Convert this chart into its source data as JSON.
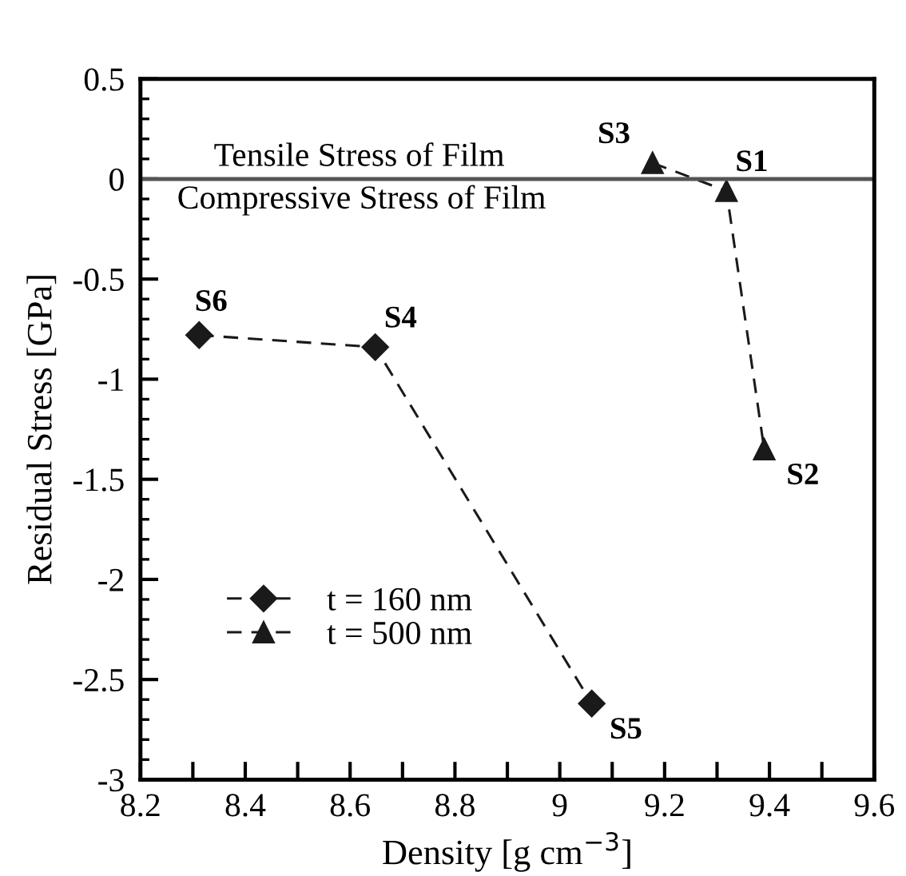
{
  "chart_data": {
    "type": "line",
    "xlabel": "Density [g cm$^{−3}$]",
    "ylabel": "Residual Stress [GPa]",
    "xlim": [
      8.2,
      9.6
    ],
    "ylim": [
      -3,
      0.5
    ],
    "xticks": [
      8.2,
      {
        "value": 8.3,
        "label": null
      },
      8.4,
      {
        "value": 8.5,
        "label": null
      },
      8.6,
      {
        "value": 8.7,
        "label": null
      },
      8.8,
      {
        "value": 8.9,
        "label": null
      },
      9,
      {
        "value": 9.1,
        "label": null
      },
      9.2,
      {
        "value": 9.3,
        "label": null
      },
      9.4,
      {
        "value": 9.5,
        "label": null
      },
      9.6
    ],
    "yticks": [
      -3,
      -2.5,
      -2,
      -1.5,
      -1,
      -0.5,
      0,
      0.5
    ],
    "grid": false,
    "legend": "bottom left",
    "line_style": "dashed",
    "series": [
      {
        "name": "t = 160 nm",
        "color": "#1a1a1a",
        "marker": "diamond",
        "x": [
          8.312,
          8.648,
          9.061
        ],
        "values": [
          -0.78,
          -0.84,
          -2.62
        ]
      },
      {
        "name": "t = 500 nm",
        "color": "#1a1a1a",
        "marker": "triangle",
        "x": [
          9.177,
          9.318,
          9.39
        ],
        "values": [
          0.08,
          -0.06,
          -1.35
        ]
      }
    ],
    "ref_lines": [
      {
        "axis": "y",
        "value": 0,
        "color": "#555555",
        "line_style": "solid"
      }
    ],
    "annotations": [
      "Tensile Stress of Film",
      "Compressive Stress of Film",
      {
        "text": "S6",
        "x": 8.312,
        "y": -0.78
      },
      {
        "text": "S4",
        "x": 8.648,
        "y": -0.84
      },
      {
        "text": "S5",
        "x": 9.061,
        "y": -2.62
      },
      {
        "text": "S3",
        "x": 9.177,
        "y": 0.08
      },
      {
        "text": "S1",
        "x": 9.318,
        "y": -0.06
      },
      {
        "text": "S2",
        "x": 9.39,
        "y": -1.35
      }
    ]
  }
}
